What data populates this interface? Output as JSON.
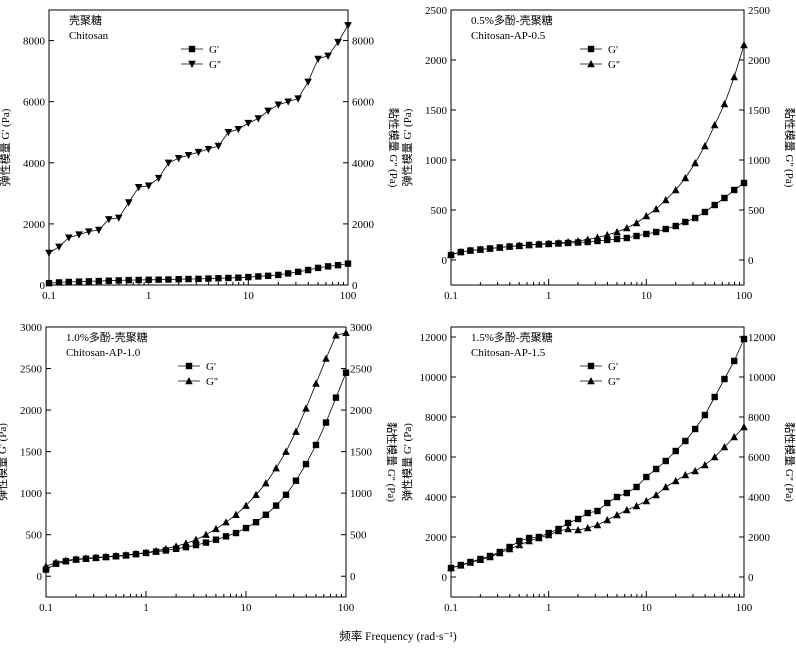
{
  "figure": {
    "xlabel": "频率 Frequency (rad·s⁻¹)"
  },
  "chart_data": [
    {
      "type": "line",
      "scale": {
        "x": "log",
        "y": "linear"
      },
      "xlim": [
        0.1,
        100
      ],
      "ylim_left": [
        0,
        9000
      ],
      "ylim_right": [
        0,
        9000
      ],
      "xticks": [
        0.1,
        1,
        10,
        100
      ],
      "xticklabels": [
        "0.1",
        "1",
        "10",
        "100"
      ],
      "yticks_left": [
        0,
        2000,
        4000,
        6000,
        8000
      ],
      "yticks_right": [
        0,
        2000,
        4000,
        6000,
        8000
      ],
      "title_cn": "壳聚糖",
      "title_en": "Chitosan",
      "ylabel_left": "弹性模量 G' (Pa)",
      "ylabel_right": "黏性模量 G'' (Pa)",
      "legend": [
        {
          "name": "G'",
          "marker": "square"
        },
        {
          "name": "G''",
          "marker": "triangle-down"
        }
      ],
      "x": [
        0.1,
        0.126,
        0.158,
        0.2,
        0.251,
        0.316,
        0.398,
        0.501,
        0.631,
        0.794,
        1.0,
        1.26,
        1.58,
        2.0,
        2.51,
        3.16,
        3.98,
        5.01,
        6.31,
        7.94,
        10.0,
        12.6,
        15.8,
        20.0,
        25.1,
        31.6,
        39.8,
        50.1,
        63.1,
        79.4,
        100
      ],
      "series": [
        {
          "name": "G'",
          "values": [
            60,
            85,
            100,
            110,
            120,
            130,
            140,
            150,
            160,
            165,
            170,
            175,
            180,
            190,
            195,
            200,
            210,
            220,
            230,
            240,
            260,
            280,
            300,
            330,
            380,
            430,
            490,
            560,
            610,
            650,
            700
          ]
        },
        {
          "name": "G''",
          "values": [
            1050,
            1250,
            1550,
            1650,
            1750,
            1800,
            2150,
            2200,
            2700,
            3200,
            3250,
            3500,
            4000,
            4150,
            4250,
            4350,
            4450,
            4550,
            5000,
            5100,
            5300,
            5450,
            5700,
            5900,
            6000,
            6100,
            6650,
            7400,
            7500,
            7950,
            8500
          ]
        }
      ]
    },
    {
      "type": "line",
      "scale": {
        "x": "log",
        "y": "linear"
      },
      "xlim": [
        0.1,
        100
      ],
      "ylim_left": [
        -250,
        2500
      ],
      "ylim_right": [
        -250,
        2500
      ],
      "xticks": [
        0.1,
        1,
        10,
        100
      ],
      "xticklabels": [
        "0.1",
        "1",
        "10",
        "100"
      ],
      "yticks_left": [
        0,
        500,
        1000,
        1500,
        2000,
        2500
      ],
      "yticks_right": [
        0,
        500,
        1000,
        1500,
        2000,
        2500
      ],
      "title_cn": "0.5%多酚-壳聚糖",
      "title_en": "Chitosan-AP-0.5",
      "ylabel_left": "弹性模量 G' (Pa)",
      "ylabel_right": "黏性模量 G'' (Pa)",
      "legend": [
        {
          "name": "G'",
          "marker": "square"
        },
        {
          "name": "G''",
          "marker": "triangle-up"
        }
      ],
      "x": [
        0.1,
        0.126,
        0.158,
        0.2,
        0.251,
        0.316,
        0.398,
        0.501,
        0.631,
        0.794,
        1.0,
        1.26,
        1.58,
        2.0,
        2.51,
        3.16,
        3.98,
        5.01,
        6.31,
        7.94,
        10.0,
        12.6,
        15.8,
        20.0,
        25.1,
        31.6,
        39.8,
        50.1,
        63.1,
        79.4,
        100
      ],
      "series": [
        {
          "name": "G'",
          "values": [
            50,
            80,
            95,
            105,
            115,
            125,
            135,
            140,
            150,
            155,
            160,
            165,
            170,
            175,
            180,
            190,
            200,
            210,
            220,
            240,
            260,
            280,
            310,
            340,
            380,
            420,
            480,
            550,
            620,
            700,
            770
          ]
        },
        {
          "name": "G''",
          "values": [
            55,
            80,
            95,
            105,
            115,
            125,
            135,
            145,
            150,
            160,
            165,
            170,
            180,
            190,
            205,
            225,
            250,
            280,
            320,
            370,
            440,
            510,
            600,
            700,
            820,
            970,
            1140,
            1350,
            1560,
            1830,
            2150
          ]
        }
      ]
    },
    {
      "type": "line",
      "scale": {
        "x": "log",
        "y": "linear"
      },
      "xlim": [
        0.1,
        100
      ],
      "ylim_left": [
        -250,
        3000
      ],
      "ylim_right": [
        -250,
        3000
      ],
      "xticks": [
        0.1,
        1,
        10,
        100
      ],
      "xticklabels": [
        "0.1",
        "1",
        "10",
        "100"
      ],
      "yticks_left": [
        0,
        500,
        1000,
        1500,
        2000,
        2500,
        3000
      ],
      "yticks_right": [
        0,
        500,
        1000,
        1500,
        2000,
        2500,
        3000
      ],
      "title_cn": "1.0%多酚-壳聚糖",
      "title_en": "Chitosan-AP-1.0",
      "ylabel_left": "弹性模量 G' (Pa)",
      "ylabel_right": "黏性模量 G'' (Pa)",
      "legend": [
        {
          "name": "G'",
          "marker": "square"
        },
        {
          "name": "G''",
          "marker": "triangle-up"
        }
      ],
      "x": [
        0.1,
        0.126,
        0.158,
        0.2,
        0.251,
        0.316,
        0.398,
        0.501,
        0.631,
        0.794,
        1.0,
        1.26,
        1.58,
        2.0,
        2.51,
        3.16,
        3.98,
        5.01,
        6.31,
        7.94,
        10.0,
        12.6,
        15.8,
        20.0,
        25.1,
        31.6,
        39.8,
        50.1,
        63.1,
        79.4,
        100
      ],
      "series": [
        {
          "name": "G'",
          "values": [
            80,
            150,
            180,
            200,
            210,
            220,
            230,
            240,
            250,
            265,
            280,
            295,
            310,
            330,
            350,
            375,
            405,
            440,
            480,
            520,
            580,
            650,
            740,
            850,
            980,
            1150,
            1350,
            1580,
            1850,
            2150,
            2450
          ]
        },
        {
          "name": "G''",
          "values": [
            120,
            165,
            190,
            205,
            215,
            225,
            235,
            245,
            255,
            270,
            285,
            305,
            330,
            360,
            395,
            440,
            500,
            570,
            650,
            740,
            850,
            980,
            1120,
            1300,
            1500,
            1740,
            2020,
            2320,
            2620,
            2900,
            2930
          ]
        }
      ]
    },
    {
      "type": "line",
      "scale": {
        "x": "log",
        "y": "linear"
      },
      "xlim": [
        0.1,
        100
      ],
      "ylim_left": [
        -1000,
        12500
      ],
      "ylim_right": [
        -1000,
        12500
      ],
      "xticks": [
        0.1,
        1,
        10,
        100
      ],
      "xticklabels": [
        "0.1",
        "1",
        "10",
        "100"
      ],
      "yticks_left": [
        0,
        2000,
        4000,
        6000,
        8000,
        10000,
        12000
      ],
      "yticks_right": [
        0,
        2000,
        4000,
        6000,
        8000,
        10000,
        12000
      ],
      "title_cn": "1.5%多酚-壳聚糖",
      "title_en": "Chitosan-AP-1.5",
      "ylabel_left": "弹性模量 G' (Pa)",
      "ylabel_right": "黏性模量 G'' (Pa)",
      "legend": [
        {
          "name": "G'",
          "marker": "square"
        },
        {
          "name": "G''",
          "marker": "triangle-up"
        }
      ],
      "x": [
        0.1,
        0.126,
        0.158,
        0.2,
        0.251,
        0.316,
        0.398,
        0.501,
        0.631,
        0.794,
        1.0,
        1.26,
        1.58,
        2.0,
        2.51,
        3.16,
        3.98,
        5.01,
        6.31,
        7.94,
        10.0,
        12.6,
        15.8,
        20.0,
        25.1,
        31.6,
        39.8,
        50.1,
        63.1,
        79.4,
        100
      ],
      "series": [
        {
          "name": "G'",
          "values": [
            450,
            600,
            750,
            900,
            1050,
            1250,
            1500,
            1800,
            1950,
            2000,
            2200,
            2400,
            2700,
            2900,
            3200,
            3300,
            3700,
            4000,
            4200,
            4500,
            5000,
            5400,
            5800,
            6300,
            6800,
            7400,
            8100,
            9000,
            9900,
            10800,
            11900
          ]
        },
        {
          "name": "G''",
          "values": [
            450,
            580,
            720,
            860,
            1000,
            1200,
            1400,
            1600,
            1800,
            1950,
            2100,
            2300,
            2400,
            2350,
            2450,
            2600,
            2850,
            3100,
            3350,
            3550,
            3800,
            4100,
            4500,
            4800,
            5100,
            5300,
            5600,
            6000,
            6500,
            7000,
            7500
          ]
        }
      ]
    }
  ]
}
